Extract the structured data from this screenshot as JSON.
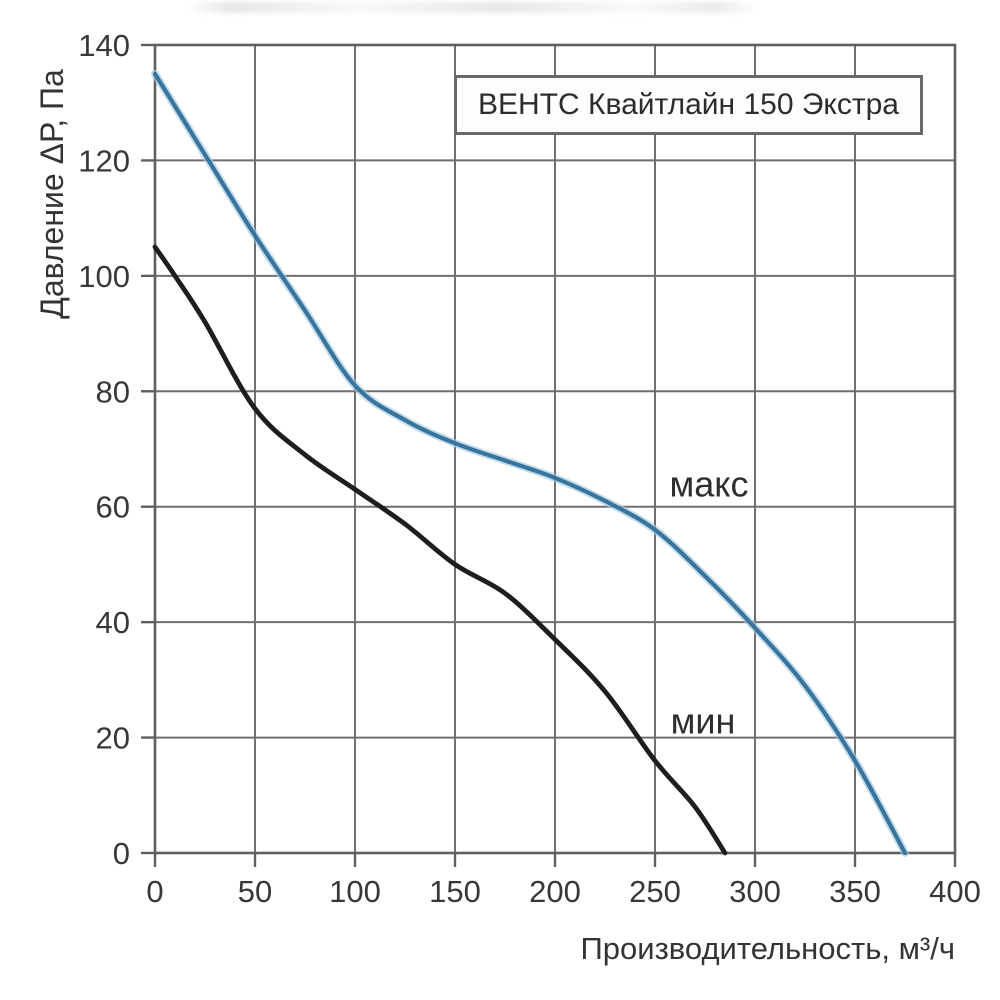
{
  "chart_data": {
    "type": "line",
    "title": "ВЕНТС Квайтлайн 150 Экстра",
    "xlabel": "Производительность, м³/ч",
    "ylabel": "Давление ΔР, Па",
    "xlim": [
      0,
      400
    ],
    "ylim": [
      0,
      140
    ],
    "x_ticks": [
      0,
      50,
      100,
      150,
      200,
      250,
      300,
      350,
      400
    ],
    "y_ticks": [
      0,
      20,
      40,
      60,
      80,
      100,
      120,
      140
    ],
    "grid": true,
    "legend_position": "inline-curve-labels",
    "colors": {
      "grid": "#6f6f6f",
      "border": "#5f5f5f",
      "tick_text": "#383838",
      "annotation_text": "#2e2e2e",
      "max_curve": "#38759e",
      "max_halo": "#a6cadd",
      "min_curve": "#1e1e1e",
      "background": "#ffffff"
    },
    "series": [
      {
        "name": "макс",
        "color": "#38759e",
        "halo": "#a6cadd",
        "points": [
          [
            0,
            135
          ],
          [
            25,
            121
          ],
          [
            50,
            107
          ],
          [
            75,
            94
          ],
          [
            100,
            81
          ],
          [
            125,
            75
          ],
          [
            150,
            71
          ],
          [
            175,
            68
          ],
          [
            200,
            65
          ],
          [
            225,
            61
          ],
          [
            250,
            56
          ],
          [
            275,
            48
          ],
          [
            300,
            39
          ],
          [
            325,
            29
          ],
          [
            350,
            16
          ],
          [
            375,
            0
          ]
        ]
      },
      {
        "name": "мин",
        "color": "#1e1e1e",
        "halo": null,
        "points": [
          [
            0,
            105
          ],
          [
            10,
            100
          ],
          [
            25,
            92
          ],
          [
            50,
            77
          ],
          [
            75,
            69
          ],
          [
            100,
            63
          ],
          [
            125,
            57
          ],
          [
            150,
            50
          ],
          [
            175,
            45
          ],
          [
            200,
            37
          ],
          [
            225,
            28
          ],
          [
            250,
            16
          ],
          [
            270,
            8
          ],
          [
            285,
            0
          ]
        ]
      }
    ],
    "annotations": [
      {
        "text": "макс",
        "x": 277,
        "y": 64
      },
      {
        "text": "мин",
        "x": 274,
        "y": 23
      }
    ]
  }
}
